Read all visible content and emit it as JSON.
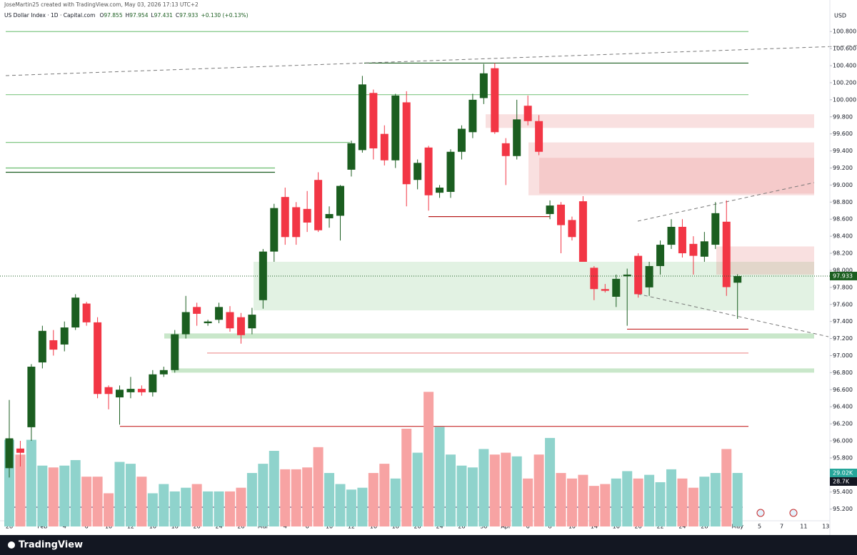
{
  "header": {
    "credit": "JoseMartin25 created with TradingView.com, May 03, 2026 17:13 UTC+2",
    "symbol": "US Dollar Index · 1D · Capital.com",
    "ohlc_prefixes": [
      "O",
      "H",
      "L",
      "C"
    ],
    "change": "+0.130 (+0.13%)",
    "currency": "USD",
    "brand": "TradingView",
    "volume_last_label": "29.02K",
    "volume_ma_label": "28.7K"
  },
  "chart_data": {
    "type": "candlestick",
    "categories": [
      "28",
      null,
      null,
      "Feb",
      null,
      "4",
      null,
      "6",
      null,
      "10",
      null,
      "12",
      null,
      "16",
      null,
      "18",
      null,
      "20",
      null,
      "24",
      null,
      "26",
      null,
      "Mar",
      null,
      "4",
      null,
      "6",
      null,
      "10",
      null,
      "12",
      null,
      "16",
      null,
      "18",
      null,
      "20",
      null,
      "24",
      null,
      "26",
      null,
      "30",
      null,
      "Apr",
      null,
      "6",
      null,
      "8",
      null,
      "10",
      null,
      "14",
      null,
      "16",
      null,
      "20",
      null,
      "22",
      null,
      "24",
      null,
      "28",
      null,
      null,
      "May",
      null,
      "5",
      null,
      "7",
      null,
      "11",
      null,
      "13"
    ],
    "open": [
      95.68,
      95.91,
      96.16,
      96.92,
      97.18,
      97.13,
      97.33,
      97.61,
      97.39,
      96.63,
      96.51,
      96.57,
      96.61,
      96.57,
      96.78,
      96.83,
      97.25,
      97.57,
      97.38,
      97.42,
      97.51,
      97.45,
      97.32,
      97.65,
      98.22,
      98.86,
      98.74,
      98.72,
      99.06,
      98.61,
      98.64,
      99.18,
      99.41,
      100.08,
      99.6,
      99.29,
      99.97,
      99.06,
      99.44,
      98.91,
      98.92,
      99.39,
      99.62,
      100.02,
      100.37,
      99.49,
      99.34,
      99.93,
      99.75,
      98.66,
      98.77,
      98.59,
      98.81,
      98.03,
      97.78,
      97.69,
      97.93,
      98.17,
      97.8,
      98.05,
      98.3,
      98.51,
      98.31,
      98.16,
      98.3,
      98.57,
      97.855,
      null,
      null,
      null,
      null,
      null,
      null,
      null,
      null
    ],
    "high": [
      96.48,
      96.0,
      96.9,
      97.35,
      97.3,
      97.4,
      97.72,
      97.63,
      97.45,
      96.65,
      96.65,
      96.75,
      96.65,
      96.83,
      96.87,
      97.3,
      97.7,
      97.62,
      97.42,
      97.62,
      97.58,
      97.5,
      97.56,
      98.25,
      98.78,
      98.97,
      98.8,
      98.93,
      99.15,
      98.75,
      99.0,
      99.52,
      100.28,
      100.12,
      99.7,
      100.07,
      100.1,
      99.3,
      99.46,
      99.0,
      99.42,
      99.7,
      100.07,
      100.42,
      100.43,
      99.55,
      100.0,
      100.05,
      99.82,
      98.82,
      98.8,
      98.63,
      98.87,
      98.05,
      97.84,
      97.95,
      98.02,
      98.2,
      98.1,
      98.35,
      98.6,
      98.6,
      98.4,
      98.45,
      98.8,
      98.82,
      97.954,
      null,
      null,
      null,
      null,
      null,
      null,
      null,
      null
    ],
    "low": [
      95.57,
      95.7,
      96.0,
      96.85,
      97.0,
      97.05,
      97.3,
      97.35,
      96.5,
      96.37,
      96.19,
      96.5,
      96.53,
      96.52,
      96.75,
      96.8,
      97.2,
      97.35,
      97.35,
      97.38,
      97.28,
      97.14,
      97.25,
      97.55,
      98.1,
      98.3,
      98.3,
      98.45,
      98.45,
      98.5,
      98.35,
      99.1,
      99.38,
      99.3,
      99.23,
      99.2,
      98.75,
      98.95,
      98.7,
      98.85,
      98.85,
      99.3,
      99.55,
      99.95,
      99.6,
      99.0,
      99.3,
      99.7,
      99.35,
      98.6,
      98.2,
      98.35,
      98.1,
      97.65,
      97.74,
      97.57,
      97.35,
      97.68,
      97.7,
      97.95,
      98.25,
      98.15,
      97.95,
      98.1,
      98.25,
      97.7,
      97.431,
      null,
      null,
      null,
      null,
      null,
      null,
      null,
      null
    ],
    "close": [
      96.03,
      95.86,
      96.87,
      97.29,
      97.07,
      97.33,
      97.68,
      97.39,
      96.55,
      96.55,
      96.6,
      96.61,
      96.57,
      96.78,
      96.83,
      97.25,
      97.51,
      97.49,
      97.4,
      97.57,
      97.32,
      97.24,
      97.48,
      98.22,
      98.73,
      98.39,
      98.39,
      98.56,
      98.47,
      98.66,
      98.99,
      99.49,
      100.18,
      99.43,
      99.29,
      100.05,
      99.01,
      99.26,
      98.88,
      98.97,
      99.39,
      99.66,
      100.0,
      100.31,
      99.62,
      99.34,
      99.77,
      99.75,
      99.39,
      98.76,
      98.53,
      98.39,
      98.1,
      97.78,
      97.76,
      97.9,
      97.95,
      97.72,
      98.05,
      98.3,
      98.51,
      98.2,
      98.17,
      98.34,
      98.67,
      97.803,
      97.933,
      null,
      null,
      null,
      null,
      null,
      null,
      null,
      null
    ],
    "volume": [
      47,
      39,
      47,
      33,
      32,
      33,
      36,
      27,
      27,
      18,
      35,
      34,
      27,
      18,
      23,
      19,
      21,
      23,
      19,
      19,
      19,
      21,
      29,
      34,
      41,
      31,
      31,
      32,
      43,
      29,
      23,
      20,
      21,
      29,
      34,
      26,
      53,
      40,
      73,
      54,
      39,
      33,
      32,
      42,
      39,
      40,
      38,
      26,
      39,
      48,
      29,
      26,
      28,
      22,
      23,
      26,
      30,
      26,
      28,
      24,
      31,
      26,
      21,
      27,
      29,
      42,
      29.02,
      null,
      null,
      null,
      null,
      null,
      null,
      null,
      null
    ],
    "up_color": "#1b5e20",
    "down_color": "#f23645",
    "volume_up_color": "#8fd3cc",
    "volume_down_color": "#f7a3a3",
    "ylim": [
      95.08,
      101.17
    ],
    "yticks": [
      {
        "value": 100.8,
        "label": "100.800"
      },
      {
        "value": 100.6,
        "label": "100.600"
      },
      {
        "value": 100.4,
        "label": "100.400"
      },
      {
        "value": 100.2,
        "label": "100.200"
      },
      {
        "value": 100.0,
        "label": "100.000"
      },
      {
        "value": 99.8,
        "label": "99.800"
      },
      {
        "value": 99.6,
        "label": "99.600"
      },
      {
        "value": 99.4,
        "label": "99.400"
      },
      {
        "value": 99.2,
        "label": "99.200"
      },
      {
        "value": 99.0,
        "label": "99.000"
      },
      {
        "value": 98.8,
        "label": "98.800"
      },
      {
        "value": 98.6,
        "label": "98.600"
      },
      {
        "value": 98.4,
        "label": "98.400"
      },
      {
        "value": 98.2,
        "label": "98.200"
      },
      {
        "value": 98.0,
        "label": "98.000"
      },
      {
        "value": 97.8,
        "label": "97.800"
      },
      {
        "value": 97.6,
        "label": "97.600"
      },
      {
        "value": 97.4,
        "label": "97.400"
      },
      {
        "value": 97.2,
        "label": "97.200"
      },
      {
        "value": 97.0,
        "label": "97.000"
      },
      {
        "value": 96.8,
        "label": "96.800"
      },
      {
        "value": 96.6,
        "label": "96.600"
      },
      {
        "value": 96.4,
        "label": "96.400"
      },
      {
        "value": 96.2,
        "label": "96.200"
      },
      {
        "value": 96.0,
        "label": "96.000"
      },
      {
        "value": 95.8,
        "label": "95.800"
      },
      {
        "value": 95.6,
        "label": "95.600"
      },
      {
        "value": 95.4,
        "label": "95.400"
      },
      {
        "value": 95.2,
        "label": "95.200"
      }
    ],
    "grid": false,
    "zones": [
      {
        "from": 97.53,
        "to": 98.1,
        "color": "rgba(76,175,80,0.16)"
      },
      {
        "from": 99.67,
        "to": 99.83,
        "color": "rgba(229,115,115,0.22)"
      },
      {
        "from": 98.88,
        "to": 99.5,
        "color": "rgba(229,115,115,0.22)"
      },
      {
        "from": 98.9,
        "to": 99.32,
        "color": "rgba(229,115,115,0.2)"
      },
      {
        "from": 97.95,
        "to": 98.28,
        "color": "rgba(229,115,115,0.22)"
      },
      {
        "from": 97.2,
        "to": 97.26,
        "color": "rgba(76,175,80,0.3)"
      },
      {
        "from": 96.8,
        "to": 96.85,
        "color": "rgba(76,175,80,0.3)"
      }
    ],
    "levels": [
      {
        "value": 100.8,
        "color": "#81c784"
      },
      {
        "value": 100.43,
        "color": "#1b5e20"
      },
      {
        "value": 100.06,
        "color": "#81c784"
      },
      {
        "value": 99.5,
        "color": "#81c784"
      },
      {
        "value": 99.2,
        "color": "#66bb6a"
      },
      {
        "value": 99.15,
        "color": "#1b5e20"
      },
      {
        "value": 98.63,
        "color": "#b71c1c"
      },
      {
        "value": 97.31,
        "color": "#c62828"
      },
      {
        "value": 97.03,
        "color": "#ef9a9a"
      },
      {
        "value": 96.17,
        "color": "#c62828"
      }
    ]
  }
}
